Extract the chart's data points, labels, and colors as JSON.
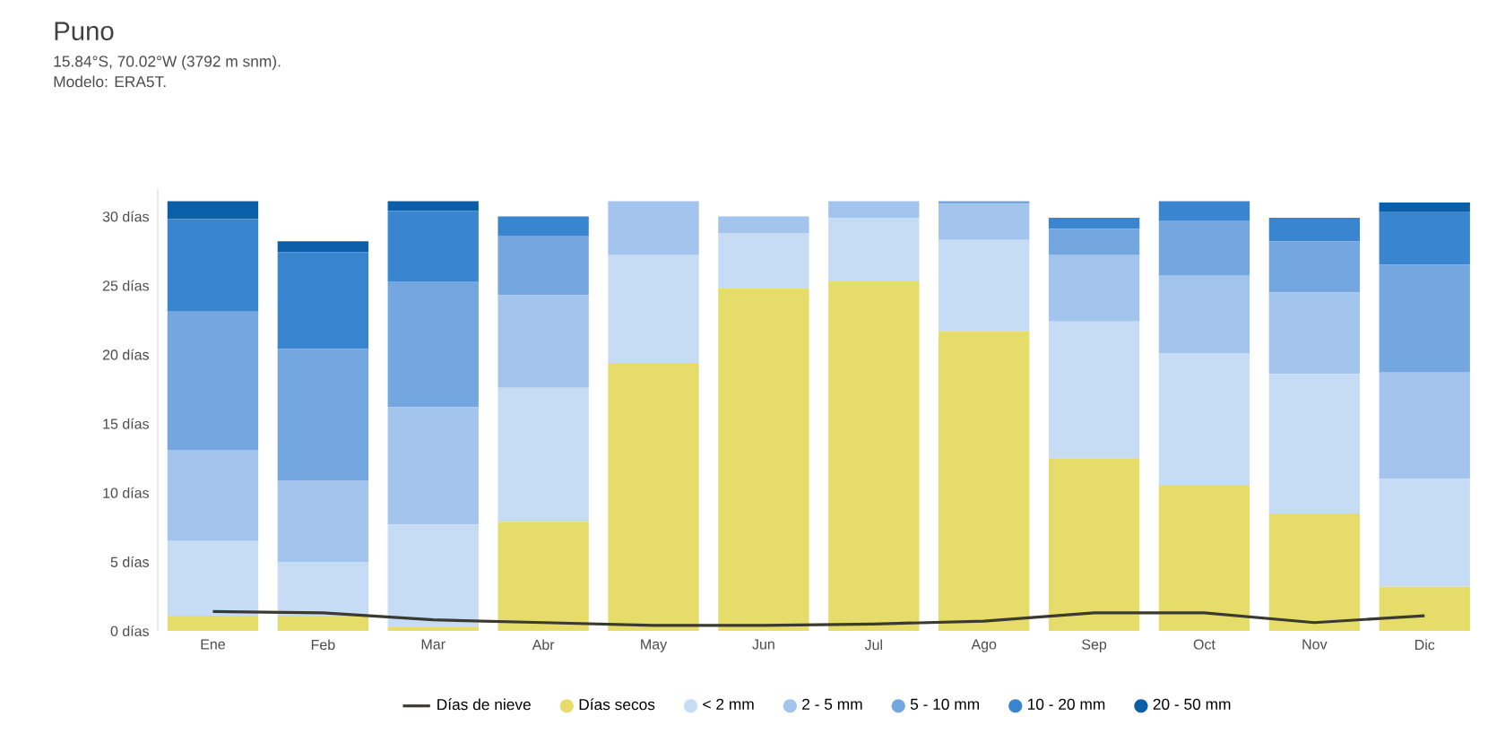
{
  "chart_data": {
    "type": "bar",
    "title": "Puno",
    "subtitle": "15.84°S, 70.02°W (3792 m snm).",
    "annotations": [
      "Modelo: ERA5T."
    ],
    "categories": [
      "Ene",
      "Feb",
      "Mar",
      "Abr",
      "May",
      "Jun",
      "Jul",
      "Ago",
      "Sep",
      "Oct",
      "Nov",
      "Dic"
    ],
    "stacked": true,
    "legend": "bottom",
    "ylim": [
      0,
      32
    ],
    "yticks": [
      {
        "value": 0,
        "label": "0 días"
      },
      {
        "value": 5,
        "label": "5 días"
      },
      {
        "value": 10,
        "label": "10 días"
      },
      {
        "value": 15,
        "label": "15 días"
      },
      {
        "value": 20,
        "label": "20 días"
      },
      {
        "value": 25,
        "label": "25 días"
      },
      {
        "value": 30,
        "label": "30 días"
      }
    ],
    "series": [
      {
        "name": "Días de nieve",
        "type": "line",
        "color": "#3a3a30",
        "values": [
          1.4,
          1.3,
          0.8,
          0.6,
          0.4,
          0.4,
          0.5,
          0.7,
          1.3,
          1.3,
          0.6,
          1.1
        ]
      },
      {
        "name": "Días secos",
        "color": "#e5dc6a",
        "values": [
          1.1,
          1.1,
          0.3,
          7.9,
          19.4,
          24.8,
          25.3,
          21.7,
          12.5,
          10.5,
          8.5,
          3.2
        ]
      },
      {
        "name": "< 2 mm",
        "color": "#c6dcf5",
        "values": [
          5.4,
          3.9,
          7.4,
          9.7,
          7.8,
          4.0,
          4.6,
          6.6,
          9.9,
          9.6,
          10.1,
          7.8
        ]
      },
      {
        "name": "2 - 5 mm",
        "color": "#a3c4ec",
        "values": [
          6.6,
          5.9,
          8.5,
          6.7,
          3.9,
          1.2,
          1.2,
          2.6,
          4.8,
          5.6,
          5.9,
          7.7
        ]
      },
      {
        "name": "5 - 10 mm",
        "color": "#74a7df",
        "values": [
          10.0,
          9.5,
          9.1,
          4.3,
          0,
          0,
          0,
          0.2,
          1.9,
          4.0,
          3.7,
          7.8
        ]
      },
      {
        "name": "10 - 20 mm",
        "color": "#3a85cf",
        "values": [
          6.7,
          7.0,
          5.1,
          1.4,
          0,
          0,
          0,
          0,
          0.8,
          1.4,
          1.7,
          3.8
        ]
      },
      {
        "name": "20 - 50 mm",
        "color": "#0a5fa8",
        "values": [
          1.3,
          0.8,
          0.7,
          0,
          0,
          0,
          0,
          0,
          0,
          0,
          0,
          0.7
        ]
      }
    ]
  }
}
